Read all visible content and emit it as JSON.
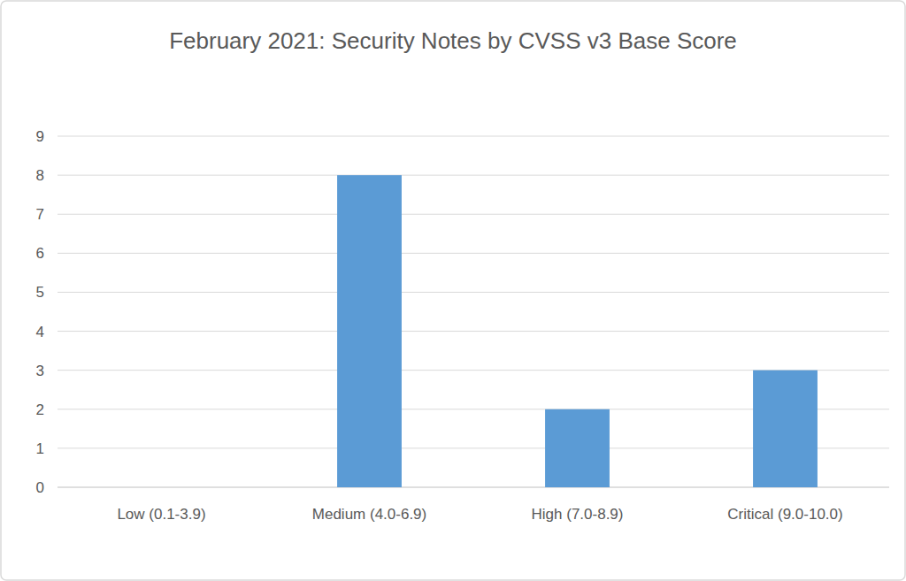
{
  "chart_data": {
    "type": "bar",
    "title": "February 2021: Security Notes by CVSS v3 Base Score",
    "categories": [
      "Low (0.1-3.9)",
      "Medium (4.0-6.9)",
      "High (7.0-8.9)",
      "Critical (9.0-10.0)"
    ],
    "values": [
      0,
      8,
      2,
      3
    ],
    "color": "#5b9bd5",
    "ylim": [
      0,
      9
    ],
    "yticks": [
      0,
      1,
      2,
      3,
      4,
      5,
      6,
      7,
      8,
      9
    ],
    "grid": true
  }
}
